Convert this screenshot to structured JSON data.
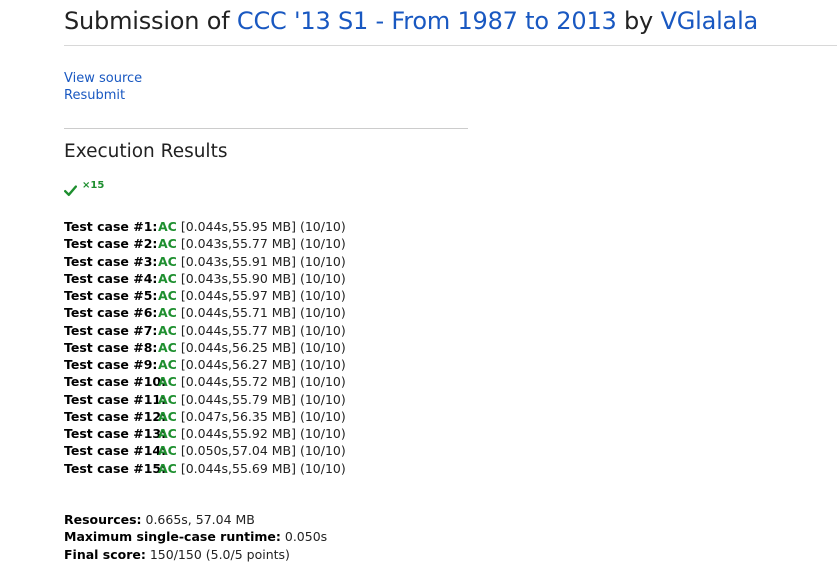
{
  "header": {
    "prefix": "Submission of ",
    "problem_link": "CCC '13 S1 - From 1987 to 2013",
    "middle": " by ",
    "user_link": "VGlalala"
  },
  "links": {
    "view_source": "View source",
    "resubmit": "Resubmit"
  },
  "execution": {
    "heading": "Execution Results",
    "summary_icon": "check-icon",
    "summary_count": "×15",
    "accent_color": "#1e8f2f",
    "cases": [
      {
        "label": "Test case #1:",
        "status": "AC",
        "detail": "[0.044s,55.95 MB] (10/10)"
      },
      {
        "label": "Test case #2:",
        "status": "AC",
        "detail": "[0.043s,55.77 MB] (10/10)"
      },
      {
        "label": "Test case #3:",
        "status": "AC",
        "detail": "[0.043s,55.91 MB] (10/10)"
      },
      {
        "label": "Test case #4:",
        "status": "AC",
        "detail": "[0.043s,55.90 MB] (10/10)"
      },
      {
        "label": "Test case #5:",
        "status": "AC",
        "detail": "[0.044s,55.97 MB] (10/10)"
      },
      {
        "label": "Test case #6:",
        "status": "AC",
        "detail": "[0.044s,55.71 MB] (10/10)"
      },
      {
        "label": "Test case #7:",
        "status": "AC",
        "detail": "[0.044s,55.77 MB] (10/10)"
      },
      {
        "label": "Test case #8:",
        "status": "AC",
        "detail": "[0.044s,56.25 MB] (10/10)"
      },
      {
        "label": "Test case #9:",
        "status": "AC",
        "detail": "[0.044s,56.27 MB] (10/10)"
      },
      {
        "label": "Test case #10:",
        "status": "AC",
        "detail": "[0.044s,55.72 MB] (10/10)"
      },
      {
        "label": "Test case #11:",
        "status": "AC",
        "detail": "[0.044s,55.79 MB] (10/10)"
      },
      {
        "label": "Test case #12:",
        "status": "AC",
        "detail": "[0.047s,56.35 MB] (10/10)"
      },
      {
        "label": "Test case #13:",
        "status": "AC",
        "detail": "[0.044s,55.92 MB] (10/10)"
      },
      {
        "label": "Test case #14:",
        "status": "AC",
        "detail": "[0.050s,57.04 MB] (10/10)"
      },
      {
        "label": "Test case #15:",
        "status": "AC",
        "detail": "[0.044s,55.69 MB] (10/10)"
      }
    ]
  },
  "totals": {
    "resources_label": "Resources:",
    "resources_value": " 0.665s, 57.04 MB",
    "max_runtime_label": "Maximum single-case runtime:",
    "max_runtime_value": " 0.050s",
    "final_score_label": "Final score:",
    "final_score_value": " 150/150 (5.0/5 points)"
  }
}
